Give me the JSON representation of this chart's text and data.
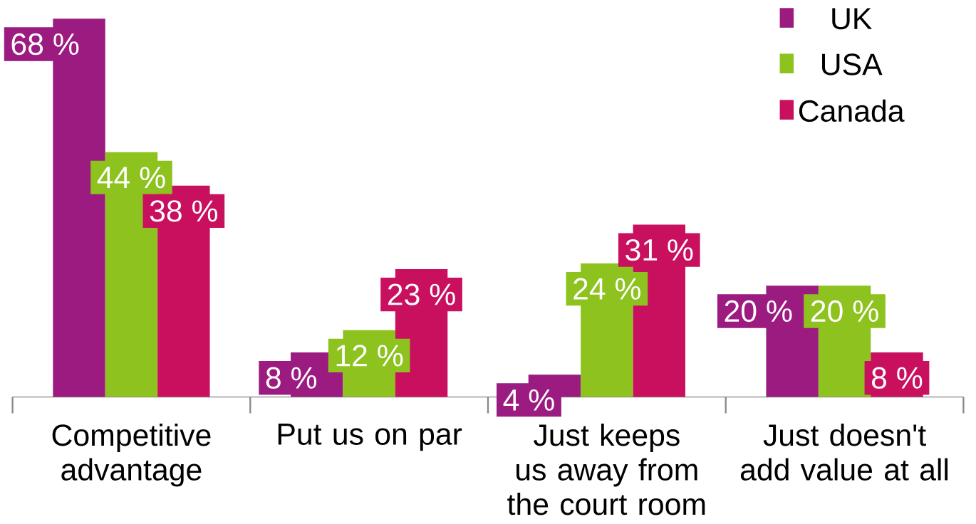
{
  "chart_data": {
    "type": "bar",
    "categories": [
      "Competitive advantage",
      "Put us on par",
      "Just keeps us away from the court room",
      "Just doesn't add value at all"
    ],
    "series": [
      {
        "name": "UK",
        "color": "#9b1b80",
        "values": [
          68,
          8,
          4,
          20
        ],
        "value_labels": [
          "68 %",
          "8 %",
          "4 %",
          "20 %"
        ]
      },
      {
        "name": "USA",
        "color": "#8dc21f",
        "values": [
          44,
          12,
          24,
          20
        ],
        "value_labels": [
          "44 %",
          "12 %",
          "24 %",
          "20 %"
        ]
      },
      {
        "name": "Canada",
        "color": "#c8105e",
        "values": [
          38,
          23,
          31,
          8
        ],
        "value_labels": [
          "38 %",
          "23 %",
          "31 %",
          "8 %"
        ]
      }
    ],
    "legend": "top right"
  }
}
